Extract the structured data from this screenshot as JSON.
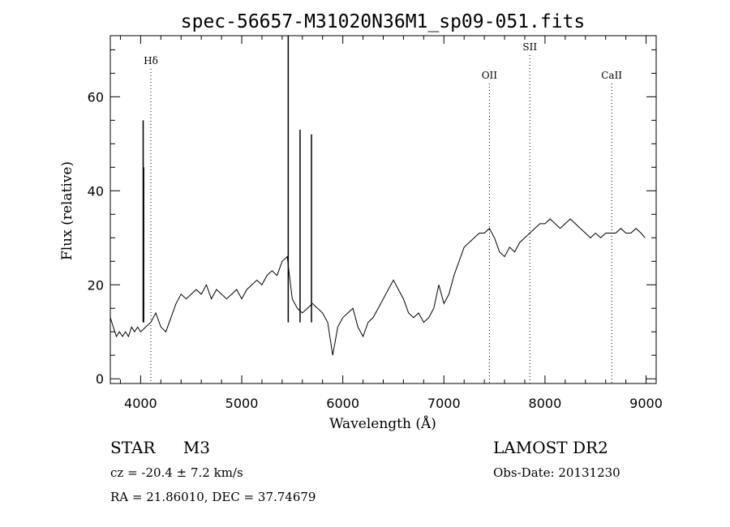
{
  "footer": {
    "object_class": "STAR",
    "subclass": "M3",
    "survey": "LAMOST DR2",
    "cz": "cz = -20.4 ± 7.2 km/s",
    "obs_date": "Obs-Date: 20131230",
    "coords": "RA =  21.86010, DEC =  37.74679"
  },
  "chart_data": {
    "type": "line",
    "title": "spec-56657-M31020N36M1_sp09-051.fits",
    "xlabel": "Wavelength (Å)",
    "ylabel": "Flux (relative)",
    "xlim": [
      3700,
      9100
    ],
    "ylim": [
      -1,
      73
    ],
    "x_ticks": [
      4000,
      5000,
      6000,
      7000,
      8000,
      9000
    ],
    "y_ticks": [
      0,
      20,
      40,
      60
    ],
    "line_color": "#000000",
    "lines": [
      {
        "label": "Hδ",
        "x": 4101
      },
      {
        "label": "OII",
        "x": 7450
      },
      {
        "label": "SII",
        "x": 7850
      },
      {
        "label": "CaII",
        "x": 8660
      }
    ],
    "spikes": [
      {
        "x": 4025,
        "y": 55
      },
      {
        "x": 4030,
        "y": 45
      },
      {
        "x": 5460,
        "y": 73
      },
      {
        "x": 5577,
        "y": 53
      },
      {
        "x": 5690,
        "y": 52
      }
    ],
    "series": [
      {
        "x": [
          3700,
          3730,
          3760,
          3790,
          3820,
          3850,
          3880,
          3910,
          3940,
          3970,
          4000,
          4050,
          4100,
          4150,
          4200,
          4250,
          4300,
          4350,
          4400,
          4450,
          4500,
          4550,
          4600,
          4650,
          4700,
          4750,
          4800,
          4850,
          4900,
          4950,
          5000,
          5050,
          5100,
          5150,
          5200,
          5250,
          5300,
          5350,
          5400,
          5450,
          5500,
          5550,
          5600,
          5650,
          5700,
          5750,
          5800,
          5850,
          5900,
          5950,
          6000,
          6050,
          6100,
          6150,
          6200,
          6250,
          6300,
          6350,
          6400,
          6450,
          6500,
          6550,
          6600,
          6650,
          6700,
          6750,
          6800,
          6850,
          6900,
          6950,
          7000,
          7050,
          7100,
          7150,
          7200,
          7250,
          7300,
          7350,
          7400,
          7450,
          7500,
          7550,
          7600,
          7650,
          7700,
          7750,
          7800,
          7850,
          7900,
          7950,
          8000,
          8050,
          8100,
          8150,
          8200,
          8250,
          8300,
          8350,
          8400,
          8450,
          8500,
          8550,
          8600,
          8650,
          8700,
          8750,
          8800,
          8850,
          8900,
          8950,
          8990
        ],
        "y": [
          13,
          11,
          9,
          10,
          9,
          10,
          9,
          11,
          10,
          11,
          10,
          11,
          12,
          14,
          11,
          10,
          13,
          16,
          18,
          17,
          18,
          19,
          18,
          20,
          17,
          19,
          18,
          17,
          18,
          19,
          17,
          19,
          20,
          21,
          20,
          22,
          23,
          22,
          25,
          26,
          17,
          15,
          14,
          15,
          16,
          15,
          14,
          12,
          5,
          11,
          13,
          14,
          15,
          11,
          9,
          12,
          13,
          15,
          17,
          19,
          21,
          19,
          17,
          14,
          13,
          14,
          12,
          13,
          15,
          20,
          16,
          18,
          22,
          25,
          28,
          29,
          30,
          31,
          31,
          32,
          30,
          27,
          26,
          28,
          27,
          29,
          30,
          31,
          32,
          33,
          33,
          34,
          33,
          32,
          33,
          34,
          33,
          32,
          31,
          30,
          31,
          30,
          31,
          31,
          31,
          32,
          31,
          31,
          32,
          31,
          30
        ]
      }
    ]
  }
}
